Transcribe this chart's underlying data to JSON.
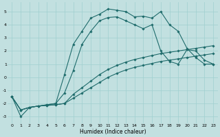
{
  "xlabel": "Humidex (Indice chaleur)",
  "background_color": "#c2e0e0",
  "grid_color": "#9fcfcf",
  "line_color": "#1e6b6b",
  "xlim": [
    -0.5,
    23.5
  ],
  "ylim": [
    -3.5,
    5.7
  ],
  "xticks": [
    0,
    1,
    2,
    3,
    4,
    5,
    6,
    7,
    8,
    9,
    10,
    11,
    12,
    13,
    14,
    15,
    16,
    17,
    18,
    19,
    20,
    21,
    22,
    23
  ],
  "yticks": [
    -3,
    -2,
    -1,
    0,
    1,
    2,
    3,
    4,
    5
  ],
  "series_main_x": [
    0,
    1,
    2,
    3,
    4,
    5,
    6,
    7,
    8,
    9,
    10,
    11,
    12,
    13,
    14,
    15,
    16,
    17,
    18,
    19,
    20,
    21,
    22,
    23
  ],
  "series_main_y": [
    -1.5,
    -3.0,
    -2.3,
    -2.2,
    -2.1,
    -2.0,
    0.2,
    2.5,
    3.5,
    4.5,
    4.8,
    5.2,
    5.1,
    5.0,
    4.6,
    4.65,
    4.5,
    5.0,
    4.0,
    3.5,
    2.2,
    1.5,
    1.0,
    1.0
  ],
  "series2_x": [
    0,
    1,
    2,
    3,
    4,
    5,
    6,
    7,
    8,
    9,
    10,
    11,
    12,
    13,
    14,
    15,
    16,
    17,
    18,
    19,
    20,
    21,
    22,
    23
  ],
  "series2_y": [
    -1.5,
    -2.5,
    -2.3,
    -2.2,
    -2.1,
    -2.0,
    -1.2,
    0.5,
    2.5,
    3.5,
    4.3,
    4.55,
    4.6,
    4.3,
    4.0,
    3.7,
    4.0,
    2.0,
    1.2,
    1.0,
    2.1,
    2.0,
    1.3,
    1.0
  ],
  "series3_x": [
    0,
    1,
    2,
    3,
    4,
    5,
    6,
    7,
    8,
    9,
    10,
    11,
    12,
    13,
    14,
    15,
    16,
    17,
    18,
    19,
    20,
    21,
    22,
    23
  ],
  "series3_y": [
    -1.5,
    -2.5,
    -2.3,
    -2.2,
    -2.15,
    -2.1,
    -2.0,
    -1.3,
    -0.8,
    -0.3,
    0.2,
    0.6,
    0.9,
    1.15,
    1.35,
    1.5,
    1.65,
    1.8,
    1.9,
    2.0,
    2.1,
    2.2,
    2.3,
    2.4
  ],
  "series4_x": [
    0,
    1,
    2,
    3,
    4,
    5,
    6,
    7,
    8,
    9,
    10,
    11,
    12,
    13,
    14,
    15,
    16,
    17,
    18,
    19,
    20,
    21,
    22,
    23
  ],
  "series4_y": [
    -1.5,
    -2.5,
    -2.3,
    -2.2,
    -2.15,
    -2.1,
    -2.0,
    -1.6,
    -1.2,
    -0.8,
    -0.4,
    0.0,
    0.3,
    0.55,
    0.75,
    0.9,
    1.05,
    1.2,
    1.3,
    1.4,
    1.5,
    1.6,
    1.7,
    1.8
  ],
  "markersize": 1.8,
  "linewidth": 0.8,
  "xlabel_fontsize": 5.5,
  "tick_fontsize": 4.5
}
